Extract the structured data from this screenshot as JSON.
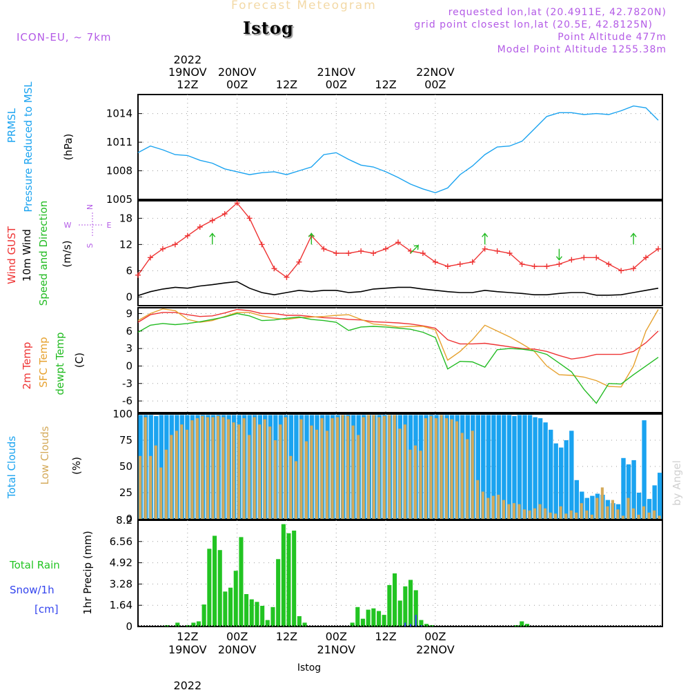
{
  "header": {
    "title_ghost": "Forecast Meteogram",
    "station": "Istog",
    "model": "ICON-EU, ~ 7km",
    "requested": "requested lon,lat (20.4911E, 42.7820N)",
    "grid": "grid point closest lon,lat (20.5E, 42.8125N)",
    "point_alt": "Point Altitude 477m",
    "model_alt": "Model Point Altitude 1255.38m",
    "footer_station": "Istog",
    "credit": "by Angel"
  },
  "colors": {
    "pressure": "#1aa3f0",
    "gust": "#ee3333",
    "wind10": "#000000",
    "winddir": "#22bb22",
    "t2m": "#ee3333",
    "tsfc": "#e6a12e",
    "dewpt": "#22bb22",
    "total_clouds": "#1aa3f0",
    "low_clouds": "#d4aa5a",
    "rain": "#22c422",
    "snow": "#3344ee",
    "purple": "#b35ae6"
  },
  "time_axis": {
    "top_year": "2022",
    "ticks": [
      {
        "day": "19NOV",
        "hour": "12Z"
      },
      {
        "day": "20NOV",
        "hour": "00Z"
      },
      {
        "day": "",
        "hour": "12Z"
      },
      {
        "day": "21NOV",
        "hour": "00Z"
      },
      {
        "day": "",
        "hour": "12Z"
      },
      {
        "day": "22NOV",
        "hour": "00Z"
      }
    ],
    "bottom_year": "2022"
  },
  "chart_data": [
    {
      "type": "line",
      "panel": "pressure",
      "ylabel": [
        "PRMSL",
        "Pressure Reduced to MSL",
        "(hPa)"
      ],
      "ylim": [
        1005,
        1016
      ],
      "yticks": [
        "1005",
        "1008",
        "1011",
        "1014"
      ],
      "x_hours": [
        0,
        3,
        6,
        9,
        12,
        15,
        18,
        21,
        24,
        27,
        30,
        33,
        36,
        39,
        42,
        45,
        48,
        51,
        54,
        57,
        60,
        63,
        66,
        69,
        72,
        75,
        78,
        81,
        84,
        87,
        90,
        93,
        96,
        99,
        102,
        105,
        108,
        111,
        114,
        117,
        120,
        123,
        126
      ],
      "values": [
        1009.9,
        1010.6,
        1010.2,
        1009.7,
        1009.6,
        1009.1,
        1008.8,
        1008.2,
        1007.9,
        1007.6,
        1007.8,
        1007.9,
        1007.6,
        1008.0,
        1008.4,
        1009.7,
        1009.9,
        1009.2,
        1008.6,
        1008.4,
        1007.9,
        1007.3,
        1006.6,
        1006.1,
        1005.7,
        1006.2,
        1007.6,
        1008.5,
        1009.7,
        1010.5,
        1010.6,
        1011.1,
        1012.4,
        1013.7,
        1014.1,
        1014.1,
        1013.9,
        1014.0,
        1013.9,
        1014.3,
        1014.8,
        1014.6,
        1013.3
      ]
    },
    {
      "type": "line",
      "panel": "wind",
      "ylabel": [
        "Wind GUST",
        "10m Wind",
        "Speed and Direction",
        "(m/s)"
      ],
      "compass": [
        "N",
        "W",
        "E",
        "S"
      ],
      "ylim": [
        -2,
        22
      ],
      "yticks": [
        "0",
        "6",
        "12",
        "18"
      ],
      "series": [
        {
          "name": "Wind GUST",
          "x_hours": [
            0,
            3,
            6,
            9,
            12,
            15,
            18,
            21,
            24,
            27,
            30,
            33,
            36,
            39,
            42,
            45,
            48,
            51,
            54,
            57,
            60,
            63,
            66,
            69,
            72,
            75,
            78,
            81,
            84,
            87,
            90,
            93,
            96,
            99,
            102,
            105,
            108,
            111,
            114,
            117,
            120,
            123,
            126
          ],
          "values": [
            5,
            9,
            11,
            12,
            14,
            16,
            17.5,
            19,
            21.5,
            18,
            12,
            6.5,
            4.5,
            8,
            14,
            11,
            10,
            10,
            10.5,
            10,
            11,
            12.5,
            10.5,
            10,
            8,
            7,
            7.5,
            8,
            11,
            10.5,
            10,
            7.5,
            7,
            7,
            7.5,
            8.5,
            9,
            9,
            7.5,
            6,
            6.5,
            9,
            11
          ]
        },
        {
          "name": "10m Wind",
          "x_hours": [
            0,
            3,
            6,
            9,
            12,
            15,
            18,
            21,
            24,
            27,
            30,
            33,
            36,
            39,
            42,
            45,
            48,
            51,
            54,
            57,
            60,
            63,
            66,
            69,
            72,
            75,
            78,
            81,
            84,
            87,
            90,
            93,
            96,
            99,
            102,
            105,
            108,
            111,
            114,
            117,
            120,
            123,
            126
          ],
          "values": [
            0.3,
            1.2,
            1.8,
            2.2,
            2,
            2.5,
            2.8,
            3.2,
            3.5,
            2,
            1,
            0.5,
            1,
            1.5,
            1.2,
            1.5,
            1.5,
            1,
            1.2,
            1.8,
            2,
            2.2,
            2.2,
            1.8,
            1.5,
            1.2,
            1,
            1,
            1.5,
            1.2,
            1,
            0.8,
            0.5,
            0.5,
            0.8,
            1,
            1,
            0.4,
            0.4,
            0.5,
            1,
            1.5,
            2
          ]
        }
      ],
      "wind_direction_arrows": [
        {
          "x_hours": 18,
          "speed": 12,
          "dir": "N"
        },
        {
          "x_hours": 42,
          "speed": 12,
          "dir": "N"
        },
        {
          "x_hours": 66,
          "speed": 10,
          "dir": "NE"
        },
        {
          "x_hours": 84,
          "speed": 12,
          "dir": "N"
        },
        {
          "x_hours": 102,
          "speed": 11,
          "dir": "S"
        },
        {
          "x_hours": 120,
          "speed": 12,
          "dir": "N"
        }
      ]
    },
    {
      "type": "line",
      "panel": "temperature",
      "ylabel": [
        "2m Temp",
        "SFC Temp",
        "dewpt Temp",
        "(C)"
      ],
      "ylim": [
        -8,
        10
      ],
      "yticks": [
        "-6",
        "-3",
        "0",
        "3",
        "6",
        "9"
      ],
      "series": [
        {
          "name": "2m Temp",
          "x_hours": [
            0,
            3,
            6,
            9,
            12,
            15,
            18,
            21,
            24,
            27,
            30,
            33,
            36,
            39,
            42,
            45,
            48,
            51,
            54,
            57,
            60,
            63,
            66,
            69,
            72,
            75,
            78,
            81,
            84,
            87,
            90,
            93,
            96,
            99,
            102,
            105,
            108,
            111,
            114,
            117,
            120,
            123,
            126
          ],
          "values": [
            7.5,
            8.8,
            9.2,
            9.2,
            8.8,
            8.5,
            8.6,
            9.1,
            9.7,
            9.5,
            9,
            9,
            8.7,
            8.7,
            8.5,
            8.3,
            8.2,
            8,
            7.9,
            7.6,
            7.5,
            7.4,
            7.2,
            6.9,
            6.5,
            4.5,
            3.8,
            3.8,
            3.9,
            3.6,
            3.3,
            3,
            2.9,
            2.5,
            1.8,
            1.2,
            1.5,
            2,
            2,
            2,
            2.5,
            4,
            6
          ]
        },
        {
          "name": "SFC Temp",
          "x_hours": [
            0,
            3,
            6,
            9,
            12,
            15,
            18,
            21,
            24,
            27,
            30,
            33,
            36,
            39,
            42,
            45,
            48,
            51,
            54,
            57,
            60,
            63,
            66,
            69,
            72,
            75,
            78,
            81,
            84,
            87,
            90,
            93,
            96,
            99,
            102,
            105,
            108,
            111,
            114,
            117,
            120,
            123,
            126
          ],
          "values": [
            7.8,
            9,
            9.8,
            9.5,
            8,
            7.5,
            7.8,
            8.5,
            9.2,
            9.2,
            8.6,
            8.2,
            8,
            8.3,
            8.4,
            8.5,
            8.7,
            8.8,
            8,
            7.2,
            7,
            6.7,
            6.8,
            6.8,
            6.2,
            1,
            2.5,
            4.5,
            7,
            6,
            5,
            3.8,
            2.5,
            0,
            -1.5,
            -1.6,
            -1.9,
            -2.5,
            -3.5,
            -3.6,
            0,
            6,
            9.7
          ]
        },
        {
          "name": "dewpt Temp",
          "x_hours": [
            0,
            3,
            6,
            9,
            12,
            15,
            18,
            21,
            24,
            27,
            30,
            33,
            36,
            39,
            42,
            45,
            48,
            51,
            54,
            57,
            60,
            63,
            66,
            69,
            72,
            75,
            78,
            81,
            84,
            87,
            90,
            93,
            96,
            99,
            102,
            105,
            108,
            111,
            114,
            117,
            120,
            123,
            126
          ],
          "values": [
            5.8,
            7,
            7.3,
            7.1,
            7.3,
            7.6,
            8,
            8.4,
            9,
            8.6,
            7.8,
            7.9,
            8.2,
            8.4,
            8,
            7.8,
            7.5,
            6.1,
            6.7,
            6.8,
            6.7,
            6.5,
            6.3,
            5.8,
            4.9,
            -0.5,
            0.8,
            0.7,
            -0.2,
            2.8,
            3,
            2.9,
            2.6,
            2,
            0.5,
            -1,
            -4,
            -6.4,
            -3,
            -3.1,
            -1.5,
            0,
            1.5
          ]
        }
      ]
    },
    {
      "type": "bar",
      "panel": "clouds",
      "ylabel": [
        "Total Clouds",
        "Low Clouds",
        "(%)"
      ],
      "ylim": [
        0,
        100
      ],
      "yticks": [
        "0",
        "25",
        "50",
        "75",
        "100"
      ],
      "series": [
        {
          "name": "Total Clouds",
          "values": [
            99,
            99,
            99,
            98,
            99,
            99,
            99,
            99,
            99,
            99,
            99,
            99,
            99,
            99,
            99,
            99,
            99,
            99,
            99,
            99,
            99,
            99,
            99,
            99,
            99,
            99,
            99,
            99,
            99,
            99,
            99,
            99,
            99,
            99,
            99,
            99,
            99,
            99,
            99,
            99,
            99,
            99,
            99,
            99,
            99,
            99,
            99,
            99,
            99,
            99,
            99,
            99,
            99,
            99,
            99,
            99,
            99,
            99,
            99,
            99,
            99,
            99,
            99,
            99,
            99,
            99,
            99,
            99,
            99,
            99,
            99,
            99,
            98,
            99,
            99,
            99,
            97,
            96,
            92,
            85,
            72,
            68,
            75,
            84,
            37,
            26,
            20,
            22,
            24,
            23,
            18,
            15,
            14,
            58,
            52,
            56,
            25,
            94,
            19,
            32,
            44
          ]
        },
        {
          "name": "Low Clouds",
          "values": [
            60,
            97,
            60,
            70,
            49,
            66,
            80,
            84,
            90,
            85,
            94,
            96,
            98,
            97,
            97,
            98,
            97,
            95,
            92,
            90,
            96,
            80,
            97,
            90,
            95,
            88,
            75,
            90,
            97,
            60,
            55,
            95,
            74,
            89,
            85,
            96,
            84,
            96,
            97,
            99,
            98,
            89,
            80,
            97,
            99,
            99,
            97,
            98,
            99,
            99,
            86,
            90,
            66,
            70,
            65,
            96,
            98,
            96,
            99,
            96,
            95,
            93,
            82,
            76,
            84,
            37,
            26,
            20,
            22,
            23,
            18,
            14,
            15,
            14,
            9,
            8,
            10,
            14,
            10,
            6,
            5,
            12,
            5,
            8,
            6,
            15,
            8,
            4,
            20,
            30,
            12,
            18,
            9,
            3,
            20,
            10,
            4,
            12,
            6,
            8,
            3
          ]
        }
      ]
    },
    {
      "type": "bar",
      "panel": "precip",
      "ylabel": [
        "1hr Precip (mm)"
      ],
      "left_labels": [
        "Total  Rain",
        "Snow/1h",
        "[cm]"
      ],
      "ylim": [
        0,
        8.2
      ],
      "yticks": [
        "0",
        "1.64",
        "3.28",
        "4.92",
        "6.56",
        "8.2"
      ],
      "series": [
        {
          "name": "Total Rain",
          "values": [
            0,
            0,
            0,
            0,
            0,
            0.1,
            0,
            0.3,
            0,
            0.1,
            0.3,
            0.4,
            1.7,
            6,
            7,
            5.9,
            2.7,
            3,
            4.3,
            6.9,
            2.5,
            2.1,
            1.9,
            1.6,
            0.5,
            1.5,
            5.2,
            7.9,
            7.2,
            7.4,
            0.8,
            0.3,
            0,
            0,
            0,
            0,
            0,
            0,
            0,
            0,
            0.3,
            1.5,
            0.6,
            1.3,
            1.4,
            1.2,
            0.9,
            3.2,
            4.1,
            2,
            3.1,
            3.6,
            2.8,
            0.5,
            0.2,
            0.1,
            0,
            0,
            0,
            0,
            0,
            0,
            0,
            0,
            0,
            0,
            0,
            0,
            0,
            0,
            0,
            0.1,
            0.4,
            0.2,
            0,
            0,
            0,
            0,
            0,
            0,
            0,
            0,
            0,
            0,
            0,
            0,
            0,
            0,
            0,
            0,
            0,
            0,
            0,
            0,
            0,
            0,
            0,
            0,
            0
          ]
        },
        {
          "name": "Snow/1h",
          "values": [
            0,
            0,
            0,
            0,
            0,
            0,
            0,
            0,
            0,
            0,
            0,
            0,
            0,
            0,
            0,
            0,
            0,
            0,
            0,
            0,
            0,
            0,
            0,
            0,
            0,
            0,
            0,
            0,
            0,
            0,
            0,
            0,
            0,
            0,
            0,
            0,
            0,
            0,
            0,
            0,
            0,
            0,
            0,
            0,
            0,
            0,
            0,
            0,
            0,
            0,
            0.3,
            0.2,
            0.9,
            0.1,
            0,
            0,
            0,
            0,
            0,
            0,
            0,
            0,
            0,
            0,
            0,
            0,
            0,
            0,
            0,
            0,
            0,
            0,
            0,
            0,
            0,
            0,
            0,
            0,
            0,
            0,
            0,
            0,
            0,
            0,
            0,
            0,
            0,
            0,
            0,
            0,
            0,
            0,
            0,
            0,
            0,
            0,
            0,
            0,
            0
          ]
        }
      ]
    }
  ]
}
